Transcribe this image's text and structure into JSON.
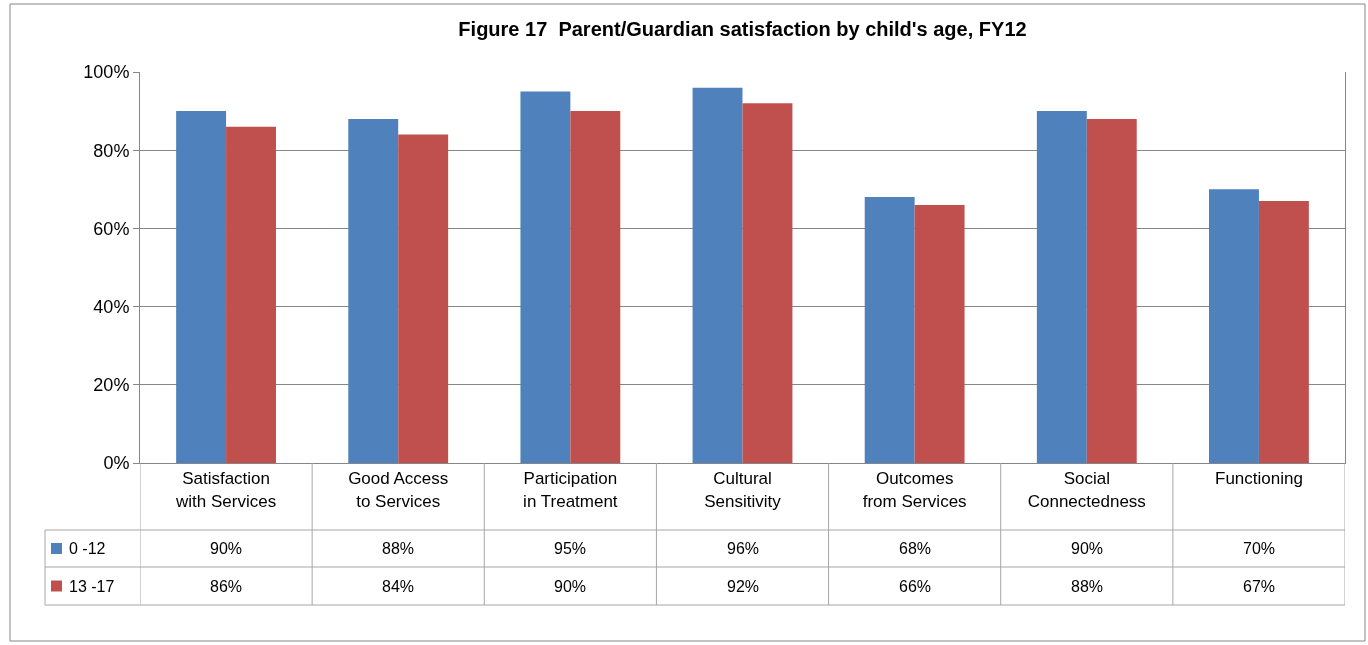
{
  "chart_data": {
    "type": "bar",
    "title": "Figure 17  Parent/Guardian satisfaction by child's age, FY12",
    "categories": [
      "Satisfaction with Services",
      "Good Access to Services",
      "Participation in Treatment",
      "Cultural Sensitivity",
      "Outcomes from Services",
      "Social Connectedness",
      "Functioning"
    ],
    "series": [
      {
        "name": "0 -12",
        "color": "#4f81bd",
        "values": [
          90,
          88,
          95,
          96,
          68,
          90,
          70
        ],
        "value_labels": [
          "90%",
          "88%",
          "95%",
          "96%",
          "68%",
          "90%",
          "70%"
        ]
      },
      {
        "name": "13 -17",
        "color": "#c0504d",
        "values": [
          86,
          84,
          90,
          92,
          66,
          88,
          67
        ],
        "value_labels": [
          "86%",
          "84%",
          "90%",
          "92%",
          "66%",
          "88%",
          "67%"
        ]
      }
    ],
    "ylim": [
      0,
      100
    ],
    "yticks": [
      {
        "value": 0,
        "label": "0%"
      },
      {
        "value": 20,
        "label": "20%"
      },
      {
        "value": 40,
        "label": "40%"
      },
      {
        "value": 60,
        "label": "60%"
      },
      {
        "value": 80,
        "label": "80%"
      },
      {
        "value": 100,
        "label": "100%"
      }
    ],
    "grid": "y",
    "legend": "bottom left"
  }
}
